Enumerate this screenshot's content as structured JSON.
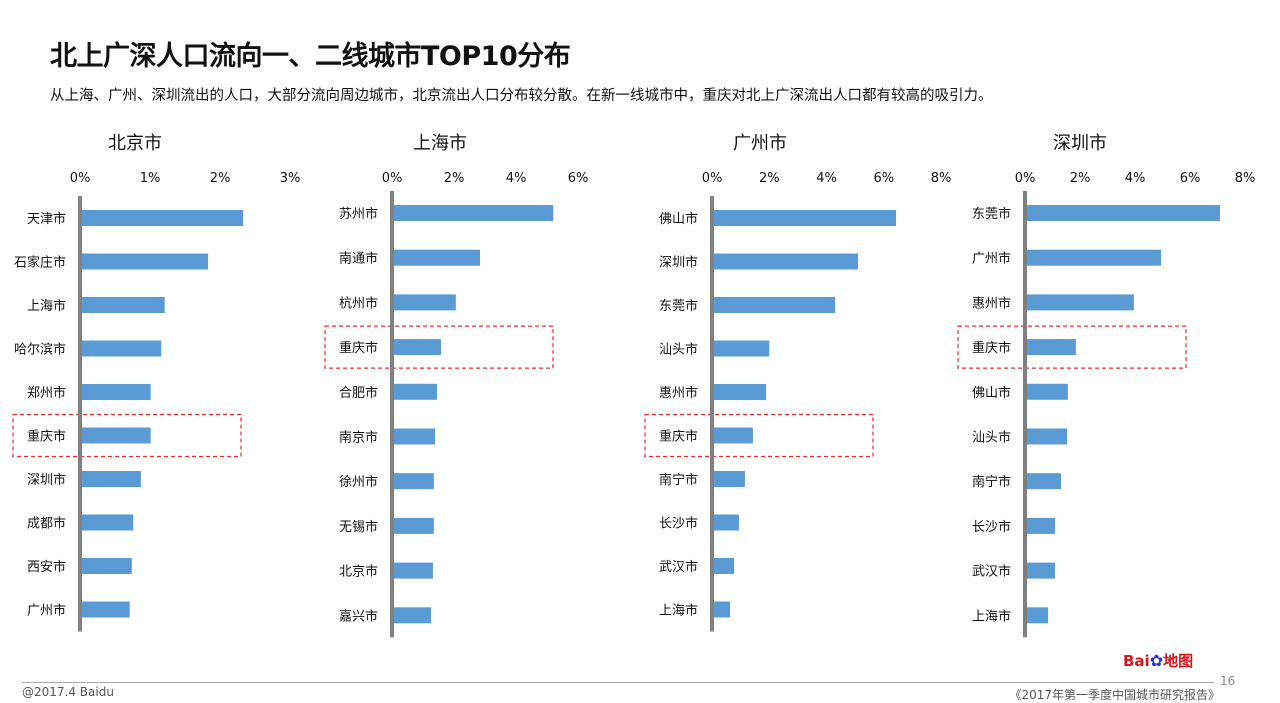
{
  "title": "北上广深人口流向一、二线城市TOP10分布",
  "subtitle": "从上海、广州、深圳流出的人口，大部分流向周边城市，北京流出人口分布较分散。在新一线城市中，重庆对北上广深流出人口都有较高的吸引力。",
  "footer": {
    "copyright": "@2017.4 Baidu",
    "report": "《2017年第一季度中国城市研究报告》",
    "page": "16",
    "logo": "Baidu地图"
  },
  "colors": {
    "bar": "#5b9bd5",
    "axis": "#808080",
    "highlight": "#e03030"
  },
  "chart_data": [
    {
      "type": "bar",
      "orientation": "horizontal",
      "title": "北京市",
      "categories": [
        "天津市",
        "石家庄市",
        "上海市",
        "哈尔滨市",
        "郑州市",
        "重庆市",
        "深圳市",
        "成都市",
        "西安市",
        "广州市"
      ],
      "values": [
        2.33,
        1.83,
        1.21,
        1.16,
        1.01,
        1.01,
        0.87,
        0.76,
        0.74,
        0.71
      ],
      "xlim": [
        0,
        3
      ],
      "ticks": [
        "0%",
        "1%",
        "2%",
        "3%"
      ],
      "unit": "%",
      "highlight": "重庆市"
    },
    {
      "type": "bar",
      "orientation": "horizontal",
      "title": "上海市",
      "categories": [
        "苏州市",
        "南通市",
        "杭州市",
        "重庆市",
        "合肥市",
        "南京市",
        "徐州市",
        "无锡市",
        "北京市",
        "嘉兴市"
      ],
      "values": [
        5.2,
        2.84,
        2.06,
        1.58,
        1.45,
        1.39,
        1.35,
        1.35,
        1.32,
        1.26
      ],
      "xlim": [
        0,
        6
      ],
      "ticks": [
        "0%",
        "2%",
        "4%",
        "6%"
      ],
      "unit": "%",
      "highlight": "重庆市"
    },
    {
      "type": "bar",
      "orientation": "horizontal",
      "title": "广州市",
      "categories": [
        "佛山市",
        "深圳市",
        "东莞市",
        "汕头市",
        "惠州市",
        "重庆市",
        "南宁市",
        "长沙市",
        "武汉市",
        "上海市"
      ],
      "values": [
        6.43,
        5.1,
        4.3,
        2.0,
        1.89,
        1.43,
        1.15,
        0.94,
        0.77,
        0.63
      ],
      "xlim": [
        0,
        8
      ],
      "ticks": [
        "0%",
        "2%",
        "4%",
        "6%",
        "8%"
      ],
      "unit": "%",
      "highlight": "重庆市"
    },
    {
      "type": "bar",
      "orientation": "horizontal",
      "title": "深圳市",
      "categories": [
        "东莞市",
        "广州市",
        "惠州市",
        "重庆市",
        "佛山市",
        "汕头市",
        "南宁市",
        "长沙市",
        "武汉市",
        "上海市"
      ],
      "values": [
        7.09,
        4.95,
        3.96,
        1.85,
        1.56,
        1.53,
        1.31,
        1.09,
        1.09,
        0.84
      ],
      "xlim": [
        0,
        8
      ],
      "ticks": [
        "0%",
        "2%",
        "4%",
        "6%",
        "8%"
      ],
      "unit": "%",
      "highlight": "重庆市"
    }
  ]
}
